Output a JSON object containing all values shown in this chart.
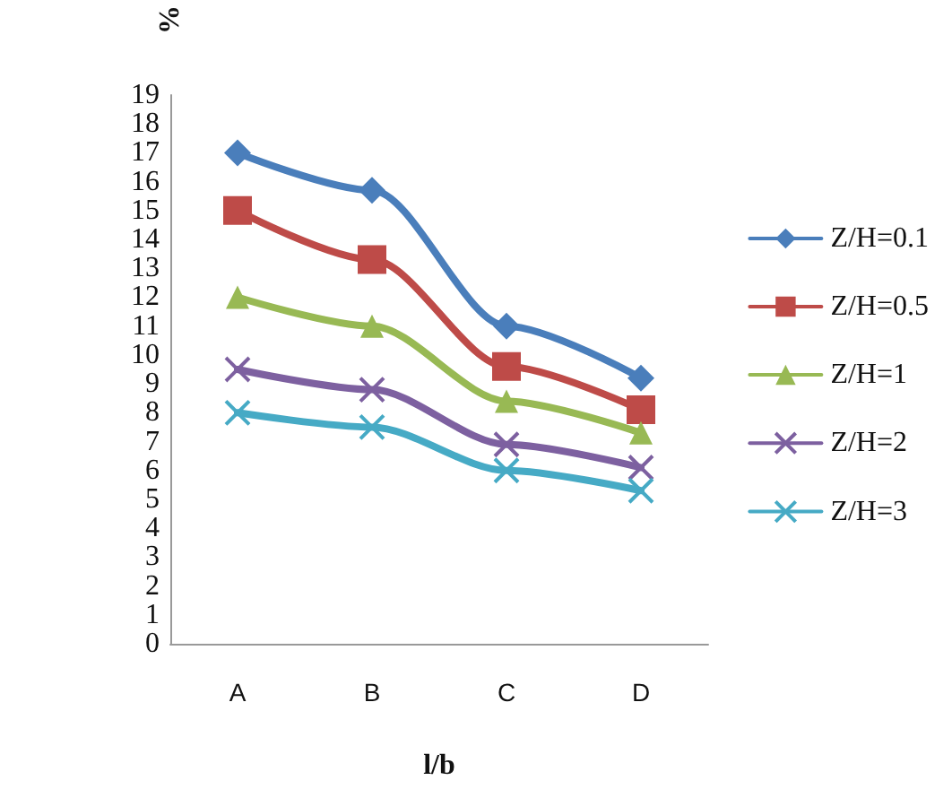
{
  "chart_data": {
    "type": "line",
    "xlabel": "l/b",
    "ylabel": "%",
    "categories": [
      "A",
      "B",
      "C",
      "D"
    ],
    "ylim": [
      0,
      19
    ],
    "yticks": [
      0,
      1,
      2,
      3,
      4,
      5,
      6,
      7,
      8,
      9,
      10,
      11,
      12,
      13,
      14,
      15,
      16,
      17,
      18,
      19
    ],
    "grid": false,
    "legend": "right",
    "series": [
      {
        "name": "Z/H=0.1",
        "color": "#4a7ebb",
        "marker": "diamond",
        "values": [
          17,
          15.7,
          11,
          9.2
        ]
      },
      {
        "name": "Z/H=0.5",
        "color": "#be4b48",
        "marker": "square",
        "values": [
          15,
          13.3,
          9.6,
          8.1
        ]
      },
      {
        "name": "Z/H=1",
        "color": "#98b954",
        "marker": "triangle",
        "values": [
          12,
          11,
          8.4,
          7.3
        ]
      },
      {
        "name": "Z/H=2",
        "color": "#7d60a0",
        "marker": "cross",
        "values": [
          9.5,
          8.8,
          6.9,
          6.1
        ]
      },
      {
        "name": "Z/H=3",
        "color": "#46aac5",
        "marker": "cross",
        "values": [
          8,
          7.5,
          6,
          5.3
        ]
      }
    ]
  }
}
